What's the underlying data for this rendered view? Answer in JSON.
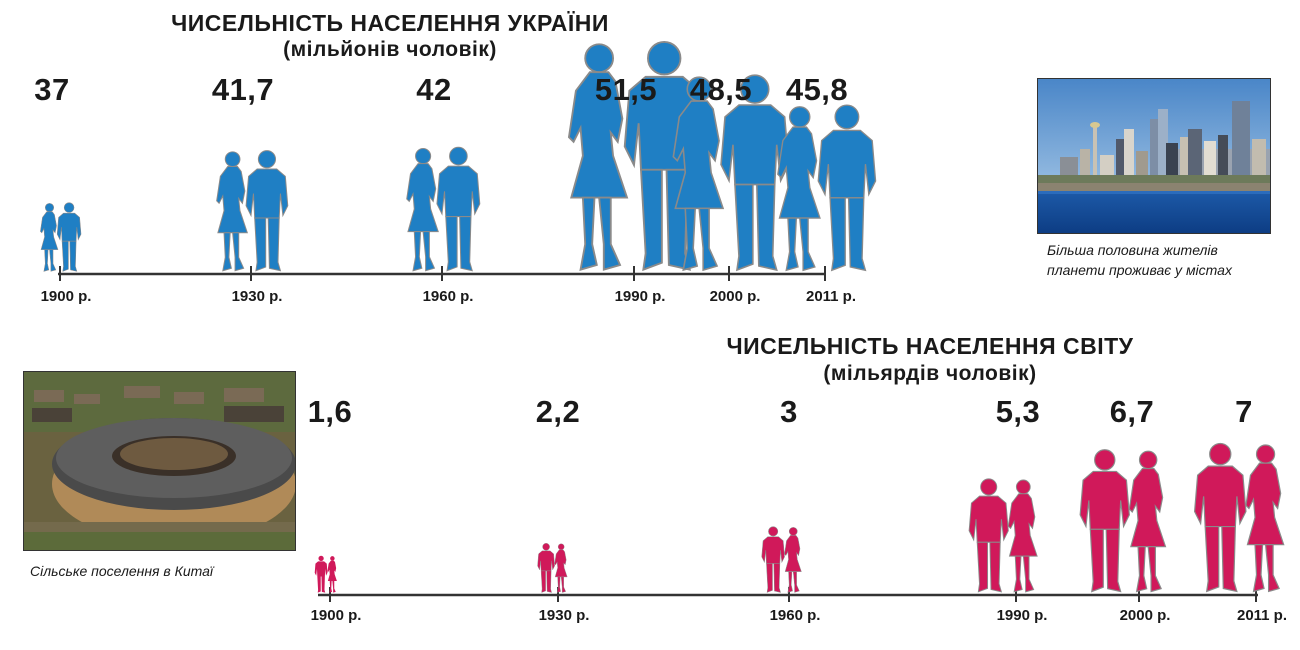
{
  "chart_data": [
    {
      "type": "bar",
      "title": "ЧИСЕЛЬНІСТЬ НАСЕЛЕННЯ УКРАЇНИ",
      "subtitle": "(мільйонів чоловік)",
      "categories": [
        "1900 р.",
        "1930 р.",
        "1960 р.",
        "1990 р.",
        "2000 р.",
        "2011 р."
      ],
      "x": [
        1900,
        1930,
        1960,
        1990,
        2000,
        2011
      ],
      "values": [
        37,
        41.7,
        42,
        51.5,
        48.5,
        45.8
      ],
      "value_labels": [
        "37",
        "41,7",
        "42",
        "51,5",
        "48,5",
        "45,8"
      ],
      "color": "#1f7fc4"
    },
    {
      "type": "bar",
      "title": "ЧИСЕЛЬНІСТЬ НАСЕЛЕННЯ СВІТУ",
      "subtitle": "(мільярдів чоловік)",
      "categories": [
        "1900 р.",
        "1930 р.",
        "1960 р.",
        "1990 р.",
        "2000 р.",
        "2011 р."
      ],
      "x": [
        1900,
        1930,
        1960,
        1990,
        2000,
        2011
      ],
      "values": [
        1.6,
        2.2,
        3,
        5.3,
        6.7,
        7
      ],
      "value_labels": [
        "1,6",
        "2,2",
        "3",
        "5,3",
        "6,7",
        "7"
      ],
      "color": "#d0195a"
    }
  ],
  "captions": {
    "city": "Більша половина жителів планети проживає у містах",
    "village": "Сільське поселення в Китаї"
  },
  "colors": {
    "ukraine": "#1f7fc4",
    "world": "#d0195a",
    "axis": "#333333",
    "outline": "#8a8a8a"
  }
}
